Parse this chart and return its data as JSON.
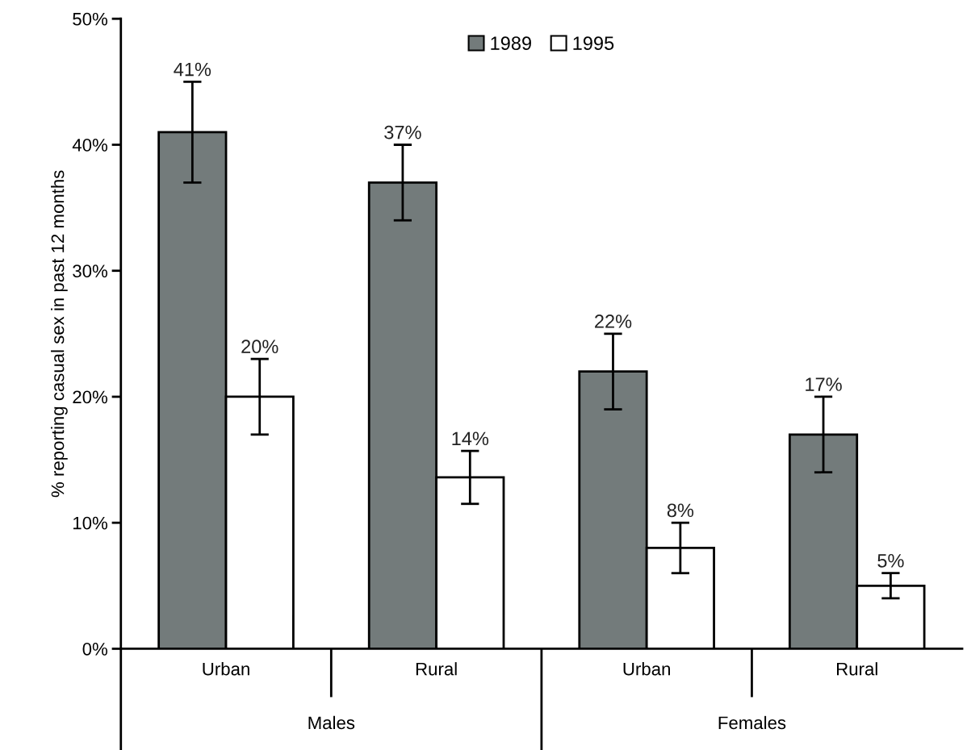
{
  "chart_data": {
    "type": "bar",
    "ylabel": "% reporting casual sex in past 12 months",
    "categories": [
      "Urban",
      "Rural",
      "Urban",
      "Rural"
    ],
    "series": [
      {
        "name": "1989",
        "color": "#737b7b",
        "values": [
          41,
          37,
          22,
          17
        ],
        "errors": [
          [
            37,
            45
          ],
          [
            34,
            40
          ],
          [
            19,
            25
          ],
          [
            14,
            20
          ]
        ],
        "value_labels": [
          "41%",
          "37%",
          "22%",
          "17%"
        ]
      },
      {
        "name": "1995",
        "color": "#ffffff",
        "values": [
          20,
          13.6,
          8,
          5
        ],
        "errors": [
          [
            17,
            23
          ],
          [
            11.5,
            15.7
          ],
          [
            6,
            10
          ],
          [
            4,
            6
          ]
        ],
        "value_labels": [
          "20%",
          "14%",
          "8%",
          "5%"
        ]
      }
    ],
    "annotations": [
      "Males",
      "Females"
    ],
    "ylim": [
      0,
      50
    ],
    "yticks": [
      {
        "value": 0,
        "label": "0%"
      },
      {
        "value": 10,
        "label": "10%"
      },
      {
        "value": 20,
        "label": "20%"
      },
      {
        "value": 30,
        "label": "30%"
      },
      {
        "value": 40,
        "label": "40%"
      },
      {
        "value": 50,
        "label": "50%"
      }
    ],
    "legend": "top",
    "grid": false
  }
}
